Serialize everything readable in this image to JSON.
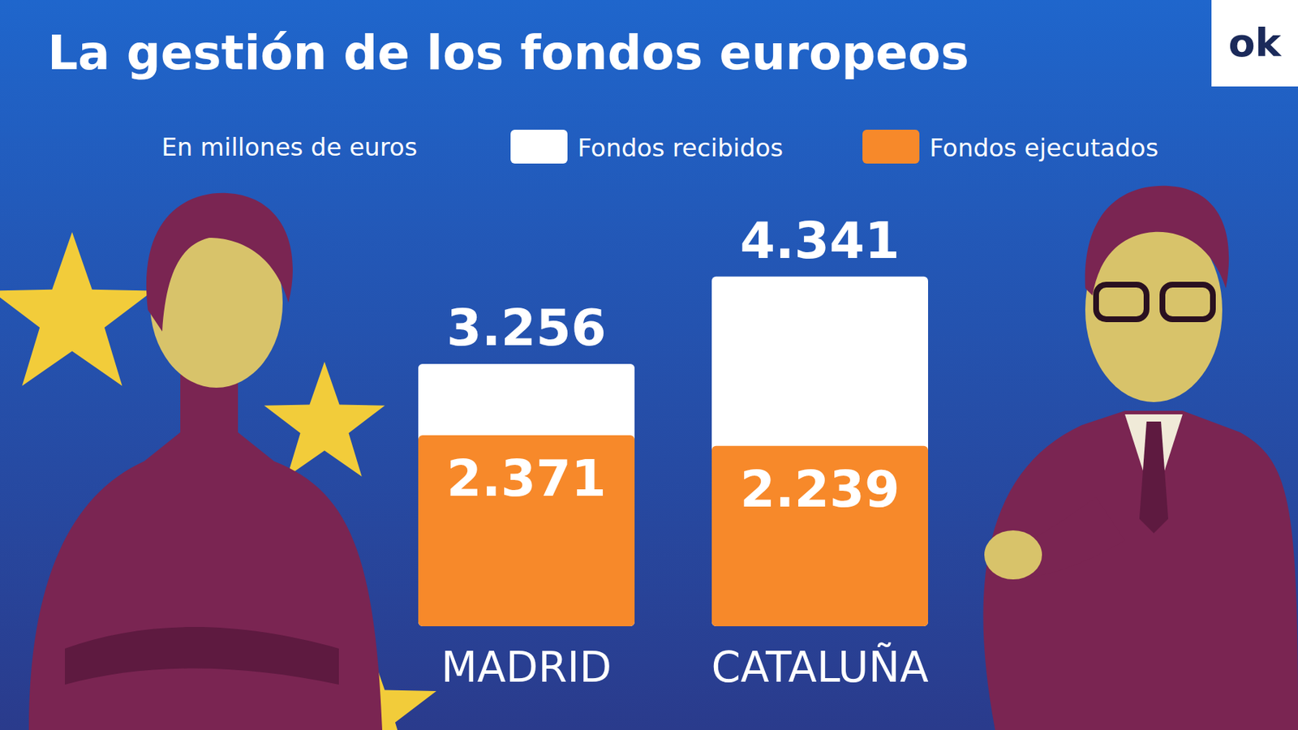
{
  "chart_data": {
    "type": "bar",
    "title": "La gestión de los fondos europeos",
    "subtitle": "En millones de euros",
    "categories": [
      "MADRID",
      "CATALUÑA"
    ],
    "series": [
      {
        "name": "Fondos recibidos",
        "color": "#ffffff",
        "values": [
          3256,
          4341
        ],
        "value_labels": [
          "3.256",
          "4.341"
        ]
      },
      {
        "name": "Fondos ejecutados",
        "color": "#f7892a",
        "values": [
          2371,
          2239
        ],
        "value_labels": [
          "2.371",
          "2.239"
        ]
      }
    ],
    "ylim": [
      0,
      5000
    ],
    "stacked": false,
    "data_labels": true,
    "grid": false,
    "legend": "top",
    "tick_labels": "x",
    "annotations": [
      "ok"
    ]
  }
}
